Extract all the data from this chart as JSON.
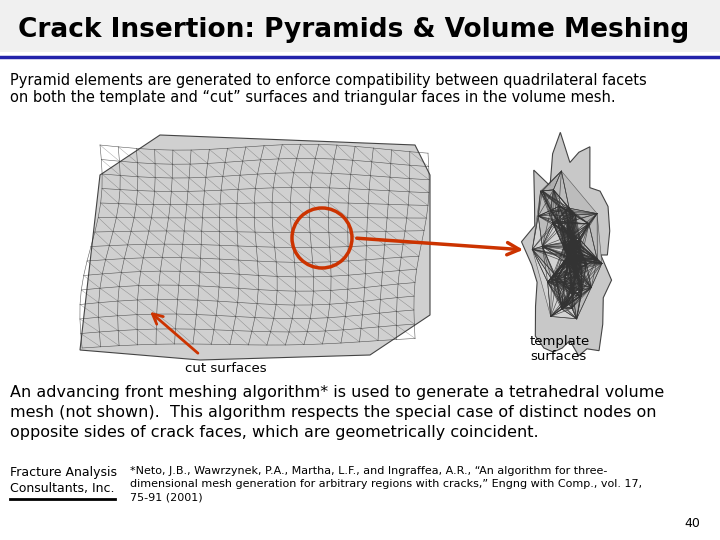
{
  "title": "Crack Insertion: Pyramids & Volume Meshing",
  "subtitle_line1": "Pyramid elements are generated to enforce compatibility between quadrilateral facets",
  "subtitle_line2": "on both the template and “cut” surfaces and triangular faces in the volume mesh.",
  "label_cut": "cut surfaces",
  "label_template_line1": "template",
  "label_template_line2": "surfaces",
  "body_line1": "An advancing front meshing algorithm* is used to generate a tetrahedral volume",
  "body_line2": "mesh (not shown).  This algorithm respects the special case of distinct nodes on",
  "body_line3": "opposite sides of crack faces, which are geometrically coincident.",
  "footer_left_line1": "Fracture Analysis",
  "footer_left_line2": "Consultants, Inc.",
  "footer_right_line1": "*Neto, J.B., Wawrzynek, P.A., Martha, L.F., and Ingraffea, A.R., “An algorithm for three-",
  "footer_right_line2": "dimensional mesh generation for arbitrary regions with cracks,” Engng with Comp., vol. 17,",
  "footer_right_line3": "75-91 (2001)",
  "title_bg_color": "#f0f0f0",
  "bg_color": "#ffffff",
  "title_color": "#000000",
  "separator_color": "#2222aa",
  "arrow_color": "#cc3300",
  "circle_color": "#cc3300",
  "mesh_color_light": "#cccccc",
  "mesh_color_dark": "#aaaaaa",
  "mesh_line_color": "#333333",
  "title_fontsize": 19,
  "subtitle_fontsize": 10.5,
  "body_fontsize": 11.5,
  "footer_fontsize": 8,
  "label_fontsize": 9.5,
  "page_num": "40"
}
